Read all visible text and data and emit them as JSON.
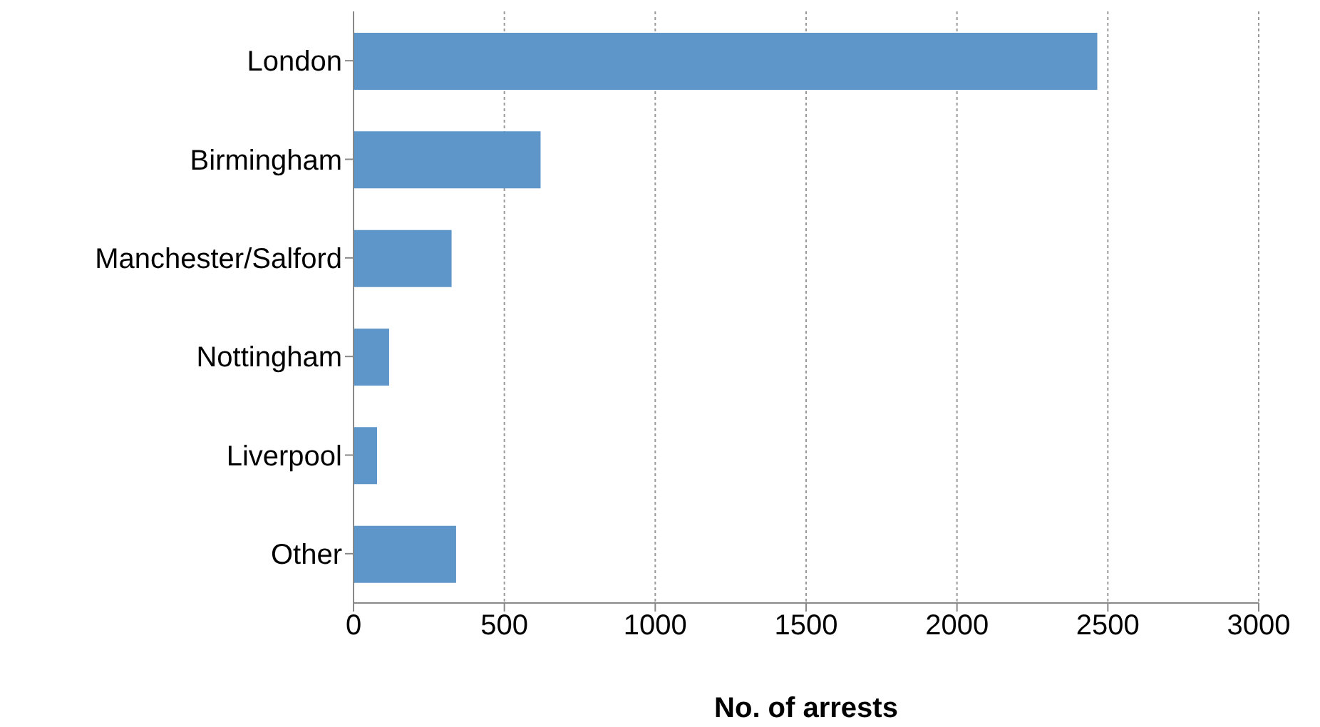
{
  "chart_data": {
    "type": "bar",
    "orientation": "horizontal",
    "xlabel": "No. of arrests",
    "categories": [
      "London",
      "Birmingham",
      "Manchester/Salford",
      "Nottingham",
      "Liverpool",
      "Other"
    ],
    "values": [
      2465,
      620,
      325,
      118,
      78,
      340
    ],
    "color": "#5f96c9",
    "xlim": [
      0,
      3000
    ],
    "xticks": [
      0,
      500,
      1000,
      1500,
      2000,
      2500,
      3000
    ],
    "grid": "x",
    "legend": false
  }
}
